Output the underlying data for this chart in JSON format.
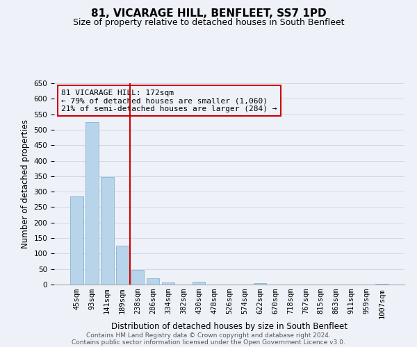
{
  "title": "81, VICARAGE HILL, BENFLEET, SS7 1PD",
  "subtitle": "Size of property relative to detached houses in South Benfleet",
  "xlabel": "Distribution of detached houses by size in South Benfleet",
  "ylabel": "Number of detached properties",
  "categories": [
    "45sqm",
    "93sqm",
    "141sqm",
    "189sqm",
    "238sqm",
    "286sqm",
    "334sqm",
    "382sqm",
    "430sqm",
    "478sqm",
    "526sqm",
    "574sqm",
    "622sqm",
    "670sqm",
    "718sqm",
    "767sqm",
    "815sqm",
    "863sqm",
    "911sqm",
    "959sqm",
    "1007sqm"
  ],
  "values": [
    285,
    525,
    348,
    125,
    48,
    20,
    7,
    0,
    8,
    0,
    0,
    0,
    5,
    0,
    0,
    0,
    0,
    0,
    0,
    0,
    3
  ],
  "bar_color": "#b8d4ea",
  "bar_edge_color": "#7aaac8",
  "vline_x": 3.5,
  "vline_color": "#cc0000",
  "annotation_box_text": "81 VICARAGE HILL: 172sqm\n← 79% of detached houses are smaller (1,060)\n21% of semi-detached houses are larger (284) →",
  "annotation_box_color": "#cc0000",
  "grid_color": "#d0d8e8",
  "ylim": [
    0,
    650
  ],
  "yticks": [
    0,
    50,
    100,
    150,
    200,
    250,
    300,
    350,
    400,
    450,
    500,
    550,
    600,
    650
  ],
  "footer_line1": "Contains HM Land Registry data © Crown copyright and database right 2024.",
  "footer_line2": "Contains public sector information licensed under the Open Government Licence v3.0.",
  "title_fontsize": 11,
  "subtitle_fontsize": 9,
  "axis_label_fontsize": 8.5,
  "tick_fontsize": 7.5,
  "annotation_fontsize": 8,
  "footer_fontsize": 6.5,
  "bg_color": "#eef2f8"
}
